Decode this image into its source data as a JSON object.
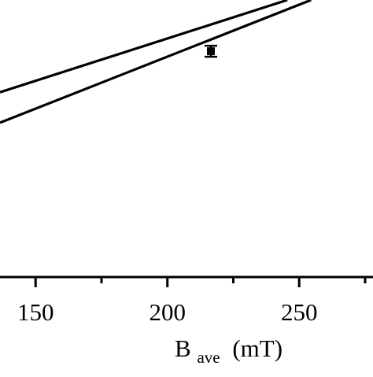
{
  "chart_data": {
    "type": "line",
    "title": "",
    "xlabel_base": "B",
    "xlabel_sub": "ave",
    "xlabel_unit": "(mT)",
    "x_ticks": [
      150,
      200,
      250
    ],
    "x_minor_ticks": [
      175,
      225,
      275
    ],
    "xlim": [
      136.5,
      278
    ],
    "ylim": [
      0,
      1
    ],
    "grid": false,
    "legend": "none",
    "series": [
      {
        "x": [
          136.5,
          245.5
        ],
        "y": [
          0.667,
          1.0
        ]
      },
      {
        "x": [
          136.5,
          254.5
        ],
        "y": [
          0.557,
          1.0
        ],
        "points": [
          {
            "x": 216.5,
            "y": 0.815,
            "err": 0.02
          }
        ]
      }
    ]
  }
}
